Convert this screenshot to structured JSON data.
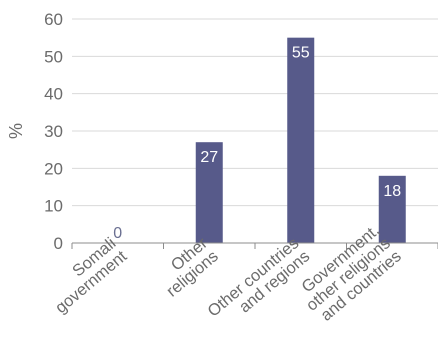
{
  "chart_data": {
    "type": "bar",
    "categories": [
      [
        "Somali",
        "government"
      ],
      [
        "Other",
        "religions"
      ],
      [
        "Other countries",
        "and regions"
      ],
      [
        "Government,",
        "other religions",
        "and countries"
      ]
    ],
    "values": [
      0,
      27,
      55,
      18
    ],
    "value_labels": [
      "0",
      "27",
      "55",
      "18"
    ],
    "ylabel": "%",
    "ylim": [
      0,
      60
    ],
    "yticks": [
      0,
      10,
      20,
      30,
      40,
      50,
      60
    ],
    "grid": true,
    "colors": {
      "bar": "#575a8a",
      "grid": "#d9d9d9",
      "axis": "#8c8c8c",
      "label_inside": "#ffffff",
      "label_zero": "#6a6f91"
    }
  }
}
